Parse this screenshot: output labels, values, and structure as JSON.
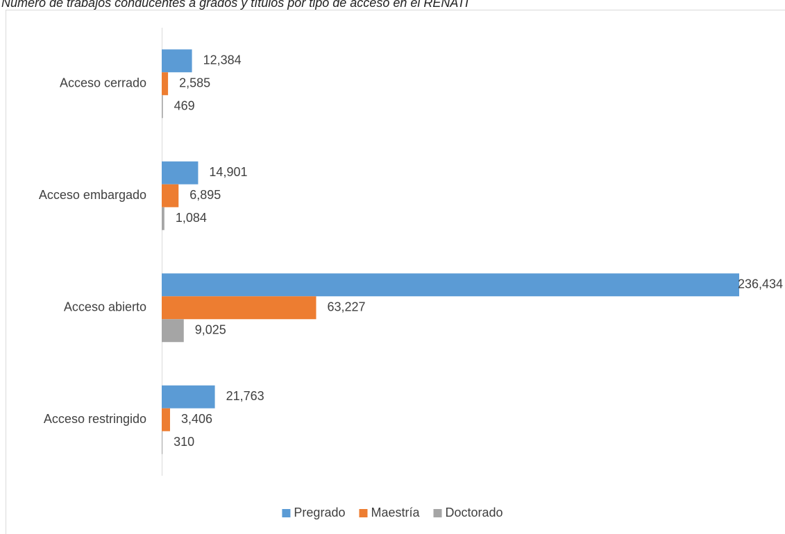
{
  "chart_data": {
    "type": "bar",
    "orientation": "horizontal",
    "title": "Número de trabajos conducentes a grados y títulos por tipo de acceso en el RENATI",
    "categories": [
      "Acceso cerrado",
      "Acceso embargado",
      "Acceso abierto",
      "Acceso restringido"
    ],
    "series": [
      {
        "name": "Pregrado",
        "color": "#5b9bd5",
        "values": [
          12384,
          14901,
          236434,
          21763
        ],
        "value_labels": [
          "12,384",
          "14,901",
          "236,434",
          "21,763"
        ]
      },
      {
        "name": "Maestría",
        "color": "#ed7d31",
        "values": [
          2585,
          6895,
          63227,
          3406
        ],
        "value_labels": [
          "2,585",
          "6,895",
          "63,227",
          "3,406"
        ]
      },
      {
        "name": "Doctorado",
        "color": "#a5a5a5",
        "values": [
          469,
          1084,
          9025,
          310
        ],
        "value_labels": [
          "469",
          "1,084",
          "9,025",
          "310"
        ]
      }
    ],
    "legend": "bottom"
  }
}
